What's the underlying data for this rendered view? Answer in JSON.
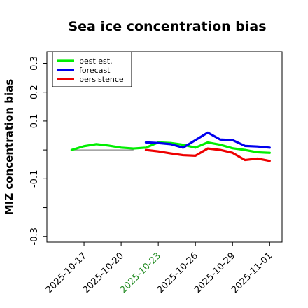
{
  "chart_data": {
    "type": "line",
    "title": "Sea ice concentration bias",
    "xlabel": "",
    "ylabel": "MIZ concentration bias",
    "ylim": [
      -0.32,
      0.34
    ],
    "xlim": [
      "2025-10-14",
      "2025-11-02"
    ],
    "yticks": [
      -0.3,
      -0.1,
      0.1,
      0.2,
      0.3
    ],
    "yticks_unlabeled": [
      -0.2,
      0.0
    ],
    "ytick_labels": [
      "-0.3",
      "-0.1",
      "0.1",
      "0.2",
      "0.3"
    ],
    "xticks": [
      "2025-10-17",
      "2025-10-20",
      "2025-10-23",
      "2025-10-26",
      "2025-10-29",
      "2025-11-01"
    ],
    "xtick_labels": [
      "2025-10-17",
      "2025-10-20",
      "2025-10-23",
      "2025-10-26",
      "2025-10-29",
      "2025-11-01"
    ],
    "highlighted_xtick": "2025-10-23",
    "highlight_color": "#228B22",
    "grid": false,
    "legend_position": "upper-left",
    "zero_line": {
      "y": 0.0,
      "from": "2025-10-16",
      "to": "2025-10-21",
      "color": "#888888"
    },
    "series": [
      {
        "name": "best est.",
        "color": "#00ee00",
        "x": [
          "2025-10-16",
          "2025-10-17",
          "2025-10-18",
          "2025-10-19",
          "2025-10-20",
          "2025-10-21",
          "2025-10-22",
          "2025-10-23",
          "2025-10-24",
          "2025-10-25",
          "2025-10-26",
          "2025-10-27",
          "2025-10-28",
          "2025-10-29",
          "2025-10-30",
          "2025-10-31",
          "2025-11-01"
        ],
        "y": [
          0.0,
          0.013,
          0.02,
          0.015,
          0.008,
          0.005,
          0.008,
          0.026,
          0.024,
          0.018,
          0.008,
          0.026,
          0.018,
          0.006,
          0.0,
          -0.008,
          -0.01
        ]
      },
      {
        "name": "forecast",
        "color": "#0000ee",
        "x": [
          "2025-10-22",
          "2025-10-23",
          "2025-10-24",
          "2025-10-25",
          "2025-10-26",
          "2025-10-27",
          "2025-10-28",
          "2025-10-29",
          "2025-10-30",
          "2025-10-31",
          "2025-11-01"
        ],
        "y": [
          0.026,
          0.024,
          0.02,
          0.008,
          0.034,
          0.06,
          0.036,
          0.034,
          0.014,
          0.012,
          0.008
        ]
      },
      {
        "name": "persistence",
        "color": "#ee0000",
        "x": [
          "2025-10-22",
          "2025-10-23",
          "2025-10-24",
          "2025-10-25",
          "2025-10-26",
          "2025-10-27",
          "2025-10-28",
          "2025-10-29",
          "2025-10-30",
          "2025-10-31",
          "2025-11-01"
        ],
        "y": [
          0.0,
          -0.005,
          -0.012,
          -0.018,
          -0.02,
          0.005,
          0.0,
          -0.01,
          -0.035,
          -0.03,
          -0.038
        ]
      }
    ]
  }
}
